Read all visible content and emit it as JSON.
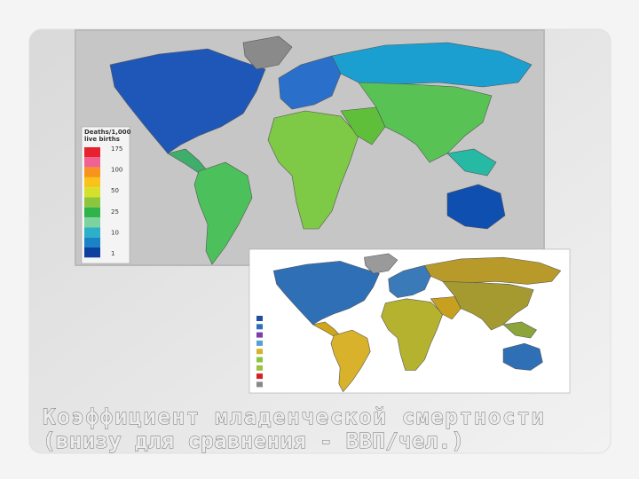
{
  "slide": {
    "caption_lines": [
      "Коэффициент младенческой смертности",
      "(внизу для сравнения - ВВП/чел.)"
    ]
  },
  "top_map": {
    "legend_title": [
      "Deaths/1,000",
      "live births"
    ],
    "legend_labels": [
      "175",
      "100",
      "50",
      "25",
      "10",
      "1"
    ]
  }
}
